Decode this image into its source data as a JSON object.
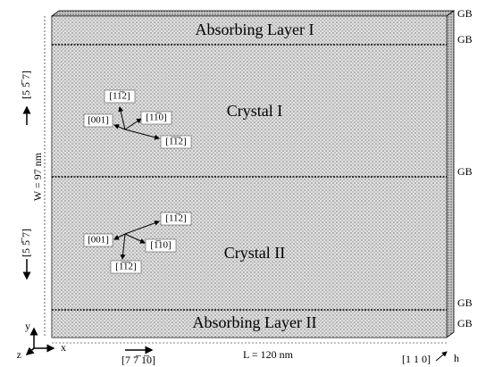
{
  "gb_labels": [
    "GB",
    "GB",
    "GB",
    "GB",
    "GB"
  ],
  "layers": [
    "Absorbing Layer I",
    "Absorbing Layer II"
  ],
  "crystals": [
    {
      "name": "Crystal I",
      "directions": [
        "[11̅2]",
        "[001]",
        "[11̅0]",
        "[1̅1̅2]"
      ]
    },
    {
      "name": "Crystal II",
      "directions": [
        "[11̅2]",
        "[001]",
        "[1̅10]",
        "[1̅1̅2]"
      ]
    }
  ],
  "dimensions": {
    "width": "W = 97 nm",
    "length": "L = 120 nm",
    "thickness": "h"
  },
  "orientations": {
    "y": [
      "[5 5̅ 7]",
      "[5 5̅ 7]"
    ],
    "x": "[7 7̅ 1̅0]",
    "z": "[1 1 0]"
  },
  "axes": {
    "x": "x",
    "y": "y",
    "z": "z"
  }
}
